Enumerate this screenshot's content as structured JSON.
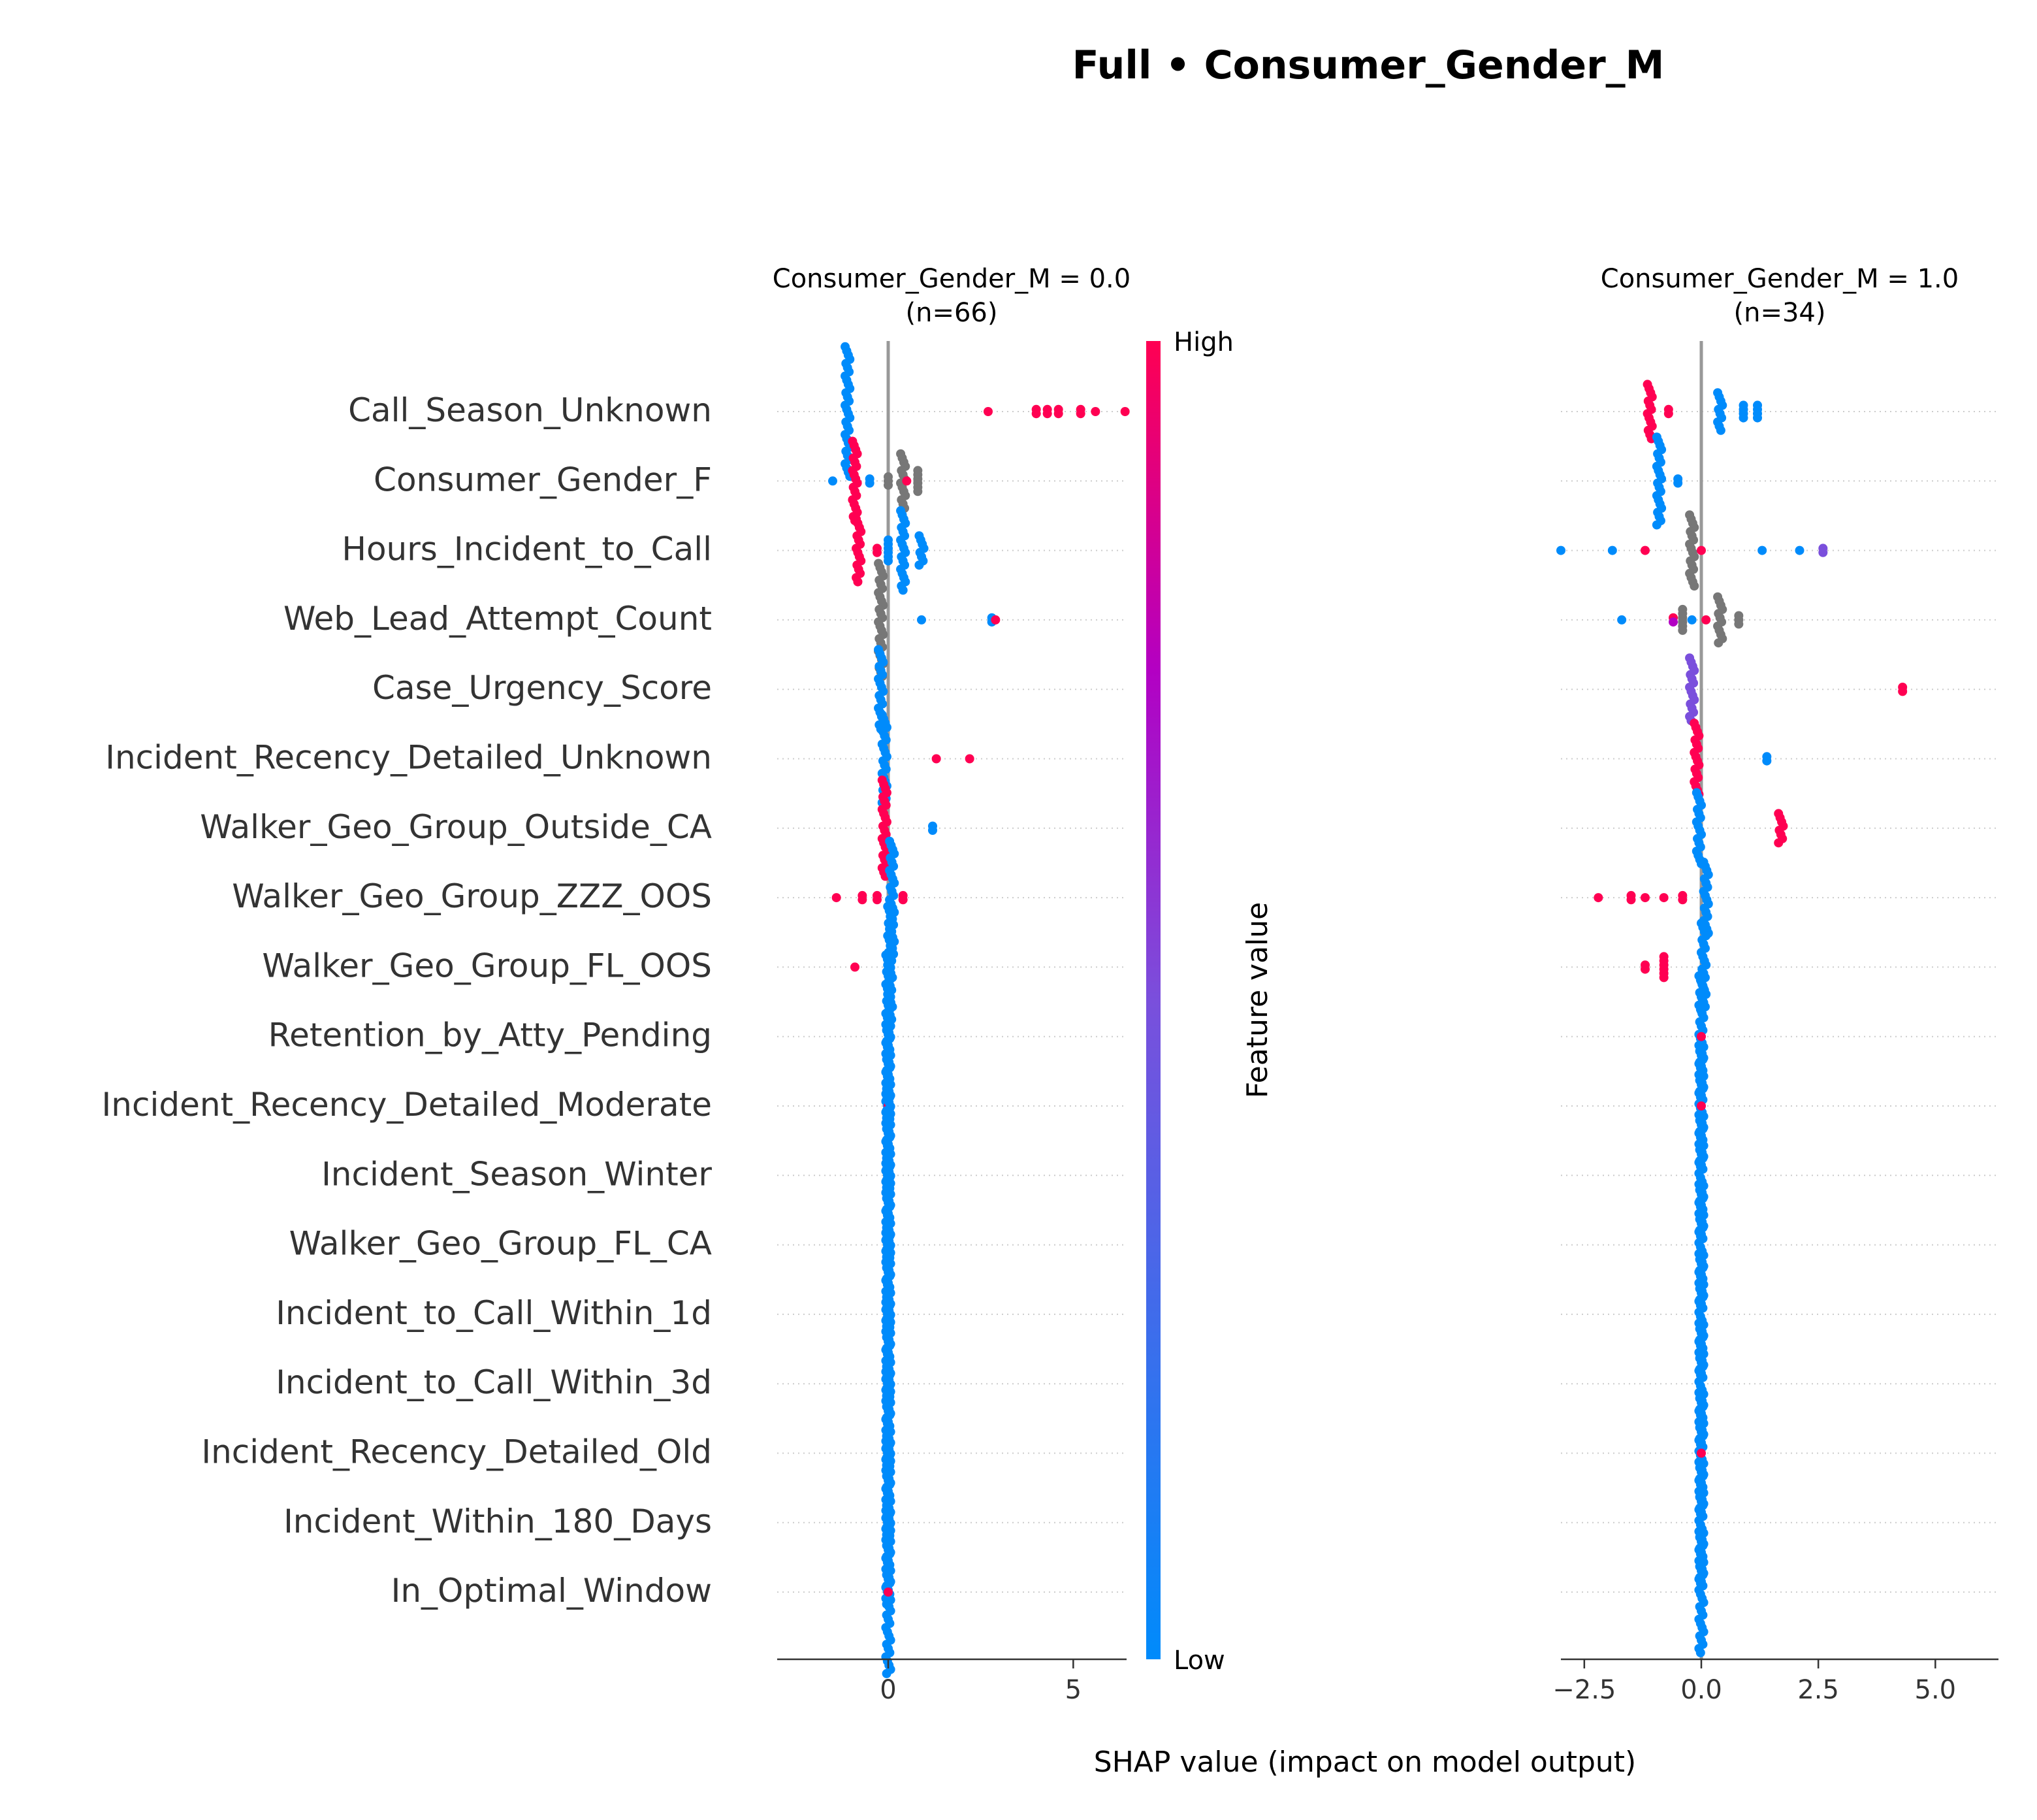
{
  "title": "Full • Consumer_Gender_M",
  "xlabel": "SHAP value (impact on model output)",
  "colorbar": {
    "label": "Feature value",
    "high": "High",
    "low": "Low",
    "colors": [
      "#008bfb",
      "#7a4fdc",
      "#b300c3",
      "#ff0052"
    ]
  },
  "features": [
    "Call_Season_Unknown",
    "Consumer_Gender_F",
    "Hours_Incident_to_Call",
    "Web_Lead_Attempt_Count",
    "Case_Urgency_Score",
    "Incident_Recency_Detailed_Unknown",
    "Walker_Geo_Group_Outside_CA",
    "Walker_Geo_Group_ZZZ_OOS",
    "Walker_Geo_Group_FL_OOS",
    "Retention_by_Atty_Pending",
    "Incident_Recency_Detailed_Moderate",
    "Incident_Season_Winter",
    "Walker_Geo_Group_FL_CA",
    "Incident_to_Call_Within_1d",
    "Incident_to_Call_Within_3d",
    "Incident_Recency_Detailed_Old",
    "Incident_Within_180_Days",
    "In_Optimal_Window"
  ],
  "chart_data": [
    {
      "type": "scatter",
      "panel_title": "Consumer_Gender_M = 0.0",
      "panel_subtitle": "(n=66)",
      "xlim": [
        -3.0,
        6.5
      ],
      "xticks": [
        0,
        5
      ],
      "xticklabels": [
        "0",
        "5"
      ],
      "rows": [
        {
          "feature": "Call_Season_Unknown",
          "groups": [
            {
              "x": -1.1,
              "n": 32,
              "c": "low"
            },
            {
              "x": 2.7,
              "n": 1,
              "c": "high"
            },
            {
              "x": 4.0,
              "n": 2,
              "c": "high"
            },
            {
              "x": 4.3,
              "n": 2,
              "c": "high"
            },
            {
              "x": 4.6,
              "n": 2,
              "c": "high"
            },
            {
              "x": 5.2,
              "n": 2,
              "c": "high"
            },
            {
              "x": 5.6,
              "n": 1,
              "c": "high"
            },
            {
              "x": 6.4,
              "n": 1,
              "c": "high"
            }
          ]
        },
        {
          "feature": "Consumer_Gender_F",
          "groups": [
            {
              "x": -1.5,
              "n": 1,
              "c": "low"
            },
            {
              "x": -0.9,
              "n": 20,
              "c": "high"
            },
            {
              "x": -0.5,
              "n": 2,
              "c": "low"
            },
            {
              "x": 0.0,
              "n": 3,
              "c": "na"
            },
            {
              "x": 0.4,
              "n": 14,
              "c": "na"
            },
            {
              "x": 0.5,
              "n": 1,
              "c": "high"
            },
            {
              "x": 0.8,
              "n": 6,
              "c": "na"
            }
          ]
        },
        {
          "feature": "Hours_Incident_to_Call",
          "groups": [
            {
              "x": -0.8,
              "n": 16,
              "c": "high"
            },
            {
              "x": -0.3,
              "n": 2,
              "c": "high"
            },
            {
              "x": 0.0,
              "n": 6,
              "c": "low"
            },
            {
              "x": 0.4,
              "n": 20,
              "c": "low"
            },
            {
              "x": 0.9,
              "n": 8,
              "c": "low"
            }
          ]
        },
        {
          "feature": "Web_Lead_Attempt_Count",
          "groups": [
            {
              "x": -0.2,
              "n": 28,
              "c": "na"
            },
            {
              "x": 0.9,
              "n": 1,
              "c": "low"
            },
            {
              "x": 2.8,
              "n": 2,
              "c": "low"
            },
            {
              "x": 2.9,
              "n": 1,
              "c": "high"
            }
          ]
        },
        {
          "feature": "Case_Urgency_Score",
          "groups": [
            {
              "x": -0.2,
              "n": 20,
              "c": "low"
            }
          ]
        },
        {
          "feature": "Incident_Recency_Detailed_Unknown",
          "groups": [
            {
              "x": -0.1,
              "n": 22,
              "c": "low"
            },
            {
              "x": 1.3,
              "n": 1,
              "c": "high"
            },
            {
              "x": 2.2,
              "n": 1,
              "c": "high"
            }
          ]
        },
        {
          "feature": "Walker_Geo_Group_Outside_CA",
          "groups": [
            {
              "x": -0.1,
              "n": 24,
              "c": "high"
            },
            {
              "x": 1.2,
              "n": 2,
              "c": "low"
            }
          ]
        },
        {
          "feature": "Walker_Geo_Group_ZZZ_OOS",
          "groups": [
            {
              "x": -1.4,
              "n": 1,
              "c": "high"
            },
            {
              "x": -0.7,
              "n": 2,
              "c": "high"
            },
            {
              "x": -0.3,
              "n": 2,
              "c": "high"
            },
            {
              "x": 0.1,
              "n": 28,
              "c": "low"
            },
            {
              "x": 0.4,
              "n": 2,
              "c": "high"
            }
          ]
        },
        {
          "feature": "Walker_Geo_Group_FL_OOS",
          "groups": [
            {
              "x": -0.9,
              "n": 1,
              "c": "high"
            },
            {
              "x": 0.05,
              "n": 30,
              "c": "low"
            }
          ]
        },
        {
          "feature": "Retention_by_Atty_Pending",
          "groups": [
            {
              "x": 0.0,
              "n": 40,
              "c": "low"
            }
          ]
        },
        {
          "feature": "Incident_Recency_Detailed_Moderate",
          "groups": [
            {
              "x": 0.0,
              "n": 40,
              "c": "low"
            },
            {
              "x": 0.0,
              "n": 1,
              "c": "high"
            }
          ]
        },
        {
          "feature": "Incident_Season_Winter",
          "groups": [
            {
              "x": 0.0,
              "n": 40,
              "c": "low"
            }
          ]
        },
        {
          "feature": "Walker_Geo_Group_FL_CA",
          "groups": [
            {
              "x": 0.0,
              "n": 40,
              "c": "low"
            }
          ]
        },
        {
          "feature": "Incident_to_Call_Within_1d",
          "groups": [
            {
              "x": 0.0,
              "n": 40,
              "c": "low"
            }
          ]
        },
        {
          "feature": "Incident_to_Call_Within_3d",
          "groups": [
            {
              "x": 0.0,
              "n": 40,
              "c": "low"
            }
          ]
        },
        {
          "feature": "Incident_Recency_Detailed_Old",
          "groups": [
            {
              "x": 0.0,
              "n": 40,
              "c": "low"
            }
          ]
        },
        {
          "feature": "Incident_Within_180_Days",
          "groups": [
            {
              "x": 0.0,
              "n": 40,
              "c": "low"
            }
          ]
        },
        {
          "feature": "In_Optimal_Window",
          "groups": [
            {
              "x": 0.0,
              "n": 40,
              "c": "low"
            },
            {
              "x": 0.0,
              "n": 1,
              "c": "high"
            }
          ]
        }
      ]
    },
    {
      "type": "scatter",
      "panel_title": "Consumer_Gender_M = 1.0",
      "panel_subtitle": "(n=34)",
      "xlim": [
        -3.0,
        6.3
      ],
      "xticks": [
        -2.5,
        0.0,
        2.5,
        5.0
      ],
      "xticklabels": [
        "−2.5",
        "0.0",
        "2.5",
        "5.0"
      ],
      "rows": [
        {
          "feature": "Call_Season_Unknown",
          "groups": [
            {
              "x": -1.1,
              "n": 14,
              "c": "high"
            },
            {
              "x": -0.7,
              "n": 2,
              "c": "high"
            },
            {
              "x": 0.4,
              "n": 10,
              "c": "low"
            },
            {
              "x": 0.9,
              "n": 4,
              "c": "low"
            },
            {
              "x": 1.2,
              "n": 4,
              "c": "low"
            }
          ]
        },
        {
          "feature": "Consumer_Gender_F",
          "groups": [
            {
              "x": -0.9,
              "n": 22,
              "c": "low"
            },
            {
              "x": -0.5,
              "n": 2,
              "c": "low"
            }
          ]
        },
        {
          "feature": "Hours_Incident_to_Call",
          "groups": [
            {
              "x": -3.0,
              "n": 1,
              "c": "low"
            },
            {
              "x": -1.9,
              "n": 1,
              "c": "low"
            },
            {
              "x": -1.2,
              "n": 1,
              "c": "high"
            },
            {
              "x": -0.2,
              "n": 18,
              "c": "na"
            },
            {
              "x": 0.0,
              "n": 1,
              "c": "high"
            },
            {
              "x": 1.3,
              "n": 1,
              "c": "low"
            },
            {
              "x": 2.1,
              "n": 1,
              "c": "low"
            },
            {
              "x": 2.6,
              "n": 2,
              "c": "mid"
            }
          ]
        },
        {
          "feature": "Web_Lead_Attempt_Count",
          "groups": [
            {
              "x": -1.7,
              "n": 1,
              "c": "low"
            },
            {
              "x": -0.6,
              "n": 2,
              "c": "mixed"
            },
            {
              "x": -0.4,
              "n": 6,
              "c": "na"
            },
            {
              "x": -0.2,
              "n": 1,
              "c": "low"
            },
            {
              "x": 0.1,
              "n": 1,
              "c": "high"
            },
            {
              "x": 0.4,
              "n": 12,
              "c": "na"
            },
            {
              "x": 0.8,
              "n": 3,
              "c": "na"
            }
          ]
        },
        {
          "feature": "Case_Urgency_Score",
          "groups": [
            {
              "x": -0.2,
              "n": 16,
              "c": "mid"
            },
            {
              "x": 4.3,
              "n": 2,
              "c": "high"
            }
          ]
        },
        {
          "feature": "Incident_Recency_Detailed_Unknown",
          "groups": [
            {
              "x": -0.1,
              "n": 18,
              "c": "high"
            },
            {
              "x": 1.4,
              "n": 2,
              "c": "low"
            }
          ]
        },
        {
          "feature": "Walker_Geo_Group_Outside_CA",
          "groups": [
            {
              "x": -0.05,
              "n": 18,
              "c": "low"
            },
            {
              "x": 1.7,
              "n": 8,
              "c": "high"
            }
          ]
        },
        {
          "feature": "Walker_Geo_Group_ZZZ_OOS",
          "groups": [
            {
              "x": -2.2,
              "n": 1,
              "c": "high"
            },
            {
              "x": -1.5,
              "n": 2,
              "c": "high"
            },
            {
              "x": -1.2,
              "n": 1,
              "c": "high"
            },
            {
              "x": -0.8,
              "n": 1,
              "c": "high"
            },
            {
              "x": -0.4,
              "n": 2,
              "c": "high"
            },
            {
              "x": 0.1,
              "n": 18,
              "c": "low"
            }
          ]
        },
        {
          "feature": "Walker_Geo_Group_FL_OOS",
          "groups": [
            {
              "x": -1.2,
              "n": 2,
              "c": "high"
            },
            {
              "x": -0.8,
              "n": 6,
              "c": "high"
            },
            {
              "x": 0.05,
              "n": 22,
              "c": "low"
            }
          ]
        },
        {
          "feature": "Retention_by_Atty_Pending",
          "groups": [
            {
              "x": 0.0,
              "n": 30,
              "c": "low"
            },
            {
              "x": 0.0,
              "n": 1,
              "c": "high"
            }
          ]
        },
        {
          "feature": "Incident_Recency_Detailed_Moderate",
          "groups": [
            {
              "x": 0.0,
              "n": 30,
              "c": "low"
            },
            {
              "x": 0.0,
              "n": 1,
              "c": "high"
            }
          ]
        },
        {
          "feature": "Incident_Season_Winter",
          "groups": [
            {
              "x": 0.0,
              "n": 30,
              "c": "low"
            }
          ]
        },
        {
          "feature": "Walker_Geo_Group_FL_CA",
          "groups": [
            {
              "x": 0.0,
              "n": 30,
              "c": "low"
            }
          ]
        },
        {
          "feature": "Incident_to_Call_Within_1d",
          "groups": [
            {
              "x": 0.0,
              "n": 30,
              "c": "low"
            }
          ]
        },
        {
          "feature": "Incident_to_Call_Within_3d",
          "groups": [
            {
              "x": 0.0,
              "n": 30,
              "c": "low"
            }
          ]
        },
        {
          "feature": "Incident_Recency_Detailed_Old",
          "groups": [
            {
              "x": 0.0,
              "n": 30,
              "c": "low"
            },
            {
              "x": 0.0,
              "n": 1,
              "c": "high"
            }
          ]
        },
        {
          "feature": "Incident_Within_180_Days",
          "groups": [
            {
              "x": 0.0,
              "n": 30,
              "c": "low"
            }
          ]
        },
        {
          "feature": "In_Optimal_Window",
          "groups": [
            {
              "x": 0.0,
              "n": 30,
              "c": "low"
            }
          ]
        }
      ]
    }
  ]
}
